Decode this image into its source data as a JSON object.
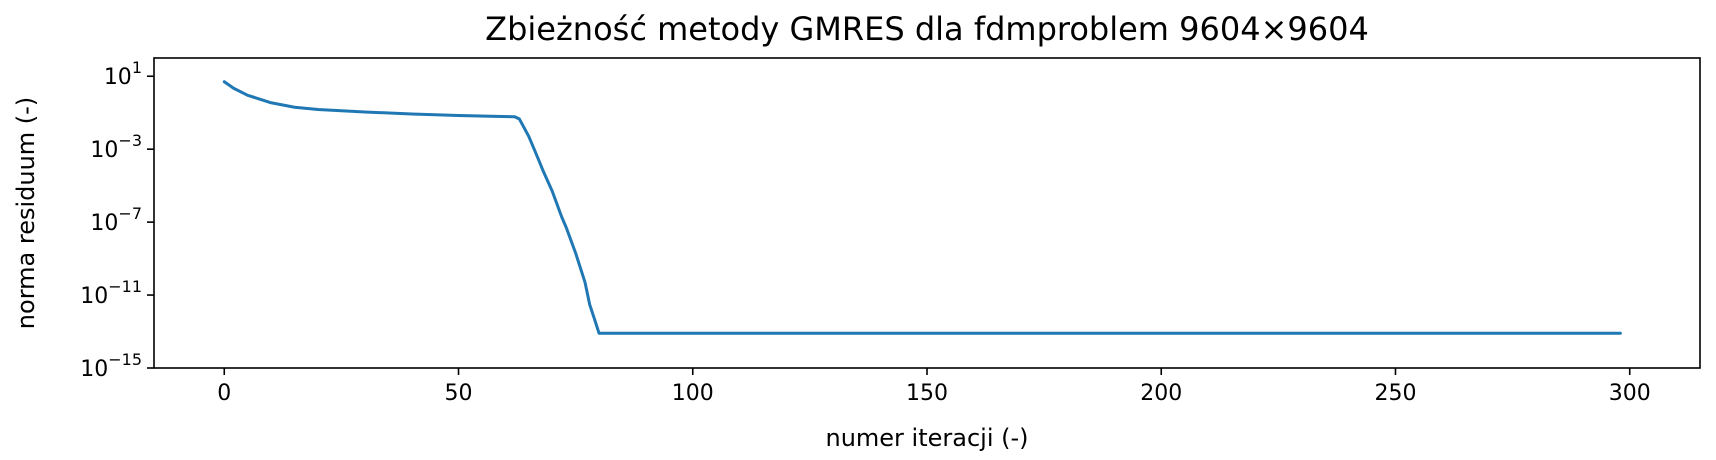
{
  "chart_data": {
    "type": "line",
    "title": "Zbieżność metody GMRES dla fdmproblem 9604×9604",
    "xlabel": "numer iteracji (-)",
    "ylabel": "norma residuum (-)",
    "xlim": [
      -15,
      315
    ],
    "ylim": [
      1e-15,
      100.0
    ],
    "yscale": "log",
    "grid": false,
    "line_color": "#1f77b4",
    "x_ticks": [
      0,
      50,
      100,
      150,
      200,
      250,
      300
    ],
    "x_tick_labels": [
      "0",
      "50",
      "100",
      "150",
      "200",
      "250",
      "300"
    ],
    "y_ticks": [
      1e-15,
      1e-11,
      1e-07,
      0.001,
      10.0
    ],
    "y_tick_labels": [
      {
        "base": "10",
        "exp": "−15"
      },
      {
        "base": "10",
        "exp": "−11"
      },
      {
        "base": "10",
        "exp": "−7"
      },
      {
        "base": "10",
        "exp": "−3"
      },
      {
        "base": "10",
        "exp": "1"
      }
    ],
    "series": [
      {
        "x": [
          0,
          2,
          5,
          10,
          15,
          20,
          30,
          40,
          50,
          58,
          62,
          63,
          65,
          67,
          68,
          70,
          72,
          73,
          75,
          77,
          78,
          79,
          80,
          100,
          150,
          200,
          250,
          298
        ],
        "y": [
          5.0,
          2.2,
          0.9,
          0.35,
          0.2,
          0.15,
          0.11,
          0.085,
          0.07,
          0.063,
          0.06,
          0.045,
          0.005,
          0.0003,
          7e-05,
          5e-06,
          2e-07,
          5e-08,
          2e-09,
          5e-11,
          3e-12,
          5e-13,
          8e-14,
          8e-14,
          8e-14,
          8e-14,
          8e-14,
          8e-14
        ]
      }
    ]
  }
}
